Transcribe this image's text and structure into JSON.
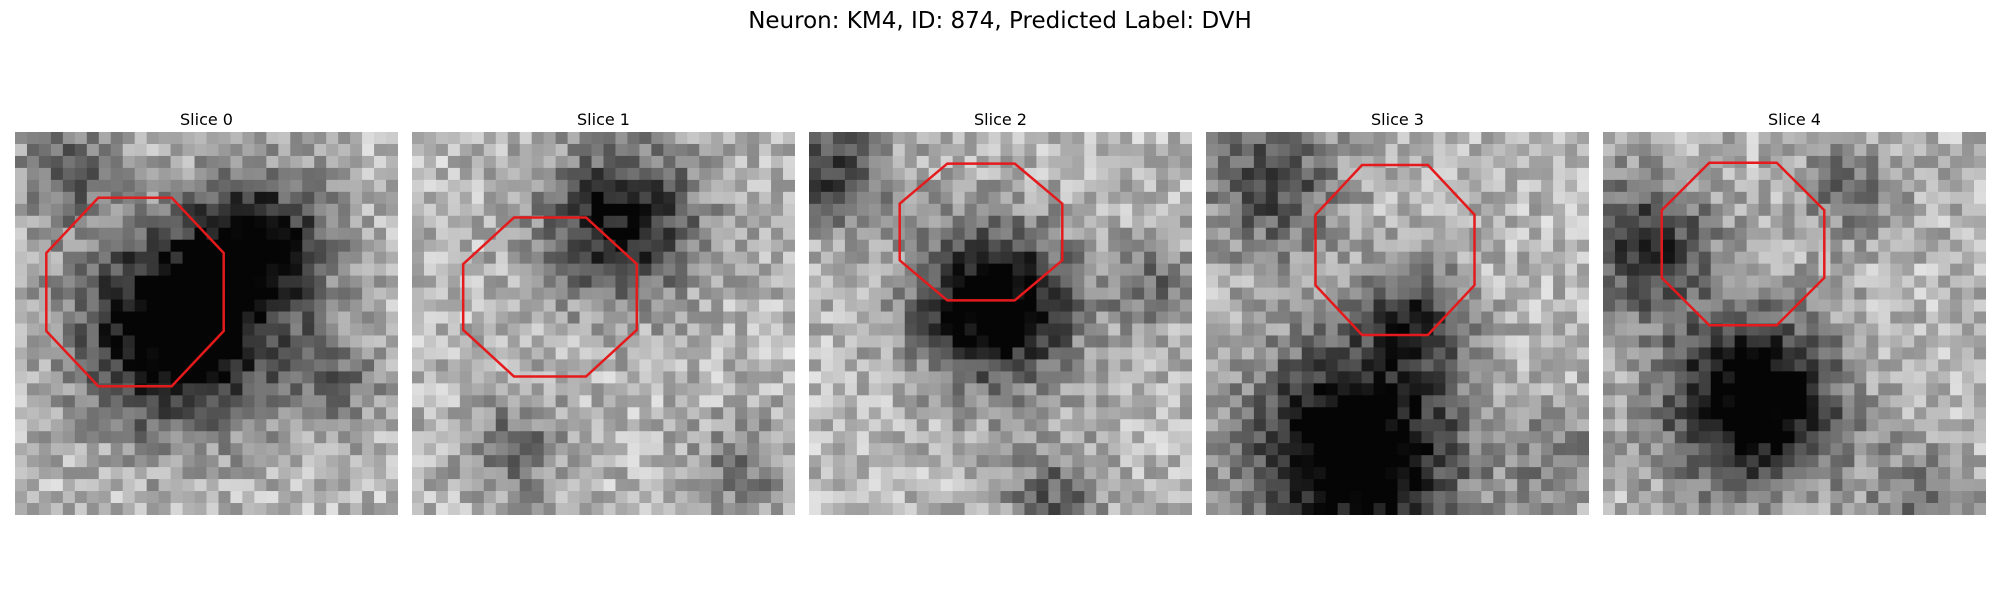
{
  "figure": {
    "title": "Neuron: KM4, ID: 874, Predicted Label: DVH",
    "contour_color": "#e41a1c"
  },
  "panels": [
    {
      "label": "Slice 0",
      "shade_seed": 11
    },
    {
      "label": "Slice 1",
      "shade_seed": 23
    },
    {
      "label": "Slice 2",
      "shade_seed": 37
    },
    {
      "label": "Slice 3",
      "shade_seed": 53
    },
    {
      "label": "Slice 4",
      "shade_seed": 71
    }
  ]
}
